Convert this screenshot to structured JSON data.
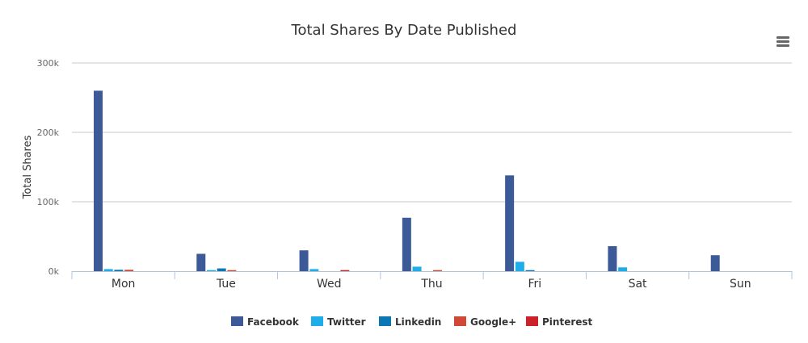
{
  "chart_data": {
    "type": "bar",
    "title": "Total Shares By Date Published",
    "xlabel": "",
    "ylabel": "Total Shares",
    "ylim": [
      0,
      300000
    ],
    "yticks": [
      {
        "value": 0,
        "label": "0k"
      },
      {
        "value": 100000,
        "label": "100k"
      },
      {
        "value": 200000,
        "label": "200k"
      },
      {
        "value": 300000,
        "label": "300k"
      }
    ],
    "categories": [
      "Mon",
      "Tue",
      "Wed",
      "Thu",
      "Fri",
      "Sat",
      "Sun"
    ],
    "series": [
      {
        "name": "Facebook",
        "color": "#3d5a98",
        "values": [
          260000,
          25000,
          30000,
          77000,
          138000,
          36000,
          23000
        ]
      },
      {
        "name": "Twitter",
        "color": "#1daee9",
        "values": [
          3000,
          1500,
          3000,
          6500,
          13500,
          5500,
          0
        ]
      },
      {
        "name": "Linkedin",
        "color": "#0b77b5",
        "values": [
          2000,
          4000,
          0,
          0,
          1500,
          0,
          0
        ]
      },
      {
        "name": "Google+",
        "color": "#d14836",
        "values": [
          2000,
          1500,
          0,
          1500,
          0,
          0,
          0
        ]
      },
      {
        "name": "Pinterest",
        "color": "#cc2127",
        "values": [
          0,
          0,
          1500,
          0,
          0,
          0,
          0
        ]
      }
    ],
    "grid": true,
    "legend": "bottom-center"
  },
  "toolbar": {
    "menu_icon": "hamburger-menu-icon"
  }
}
